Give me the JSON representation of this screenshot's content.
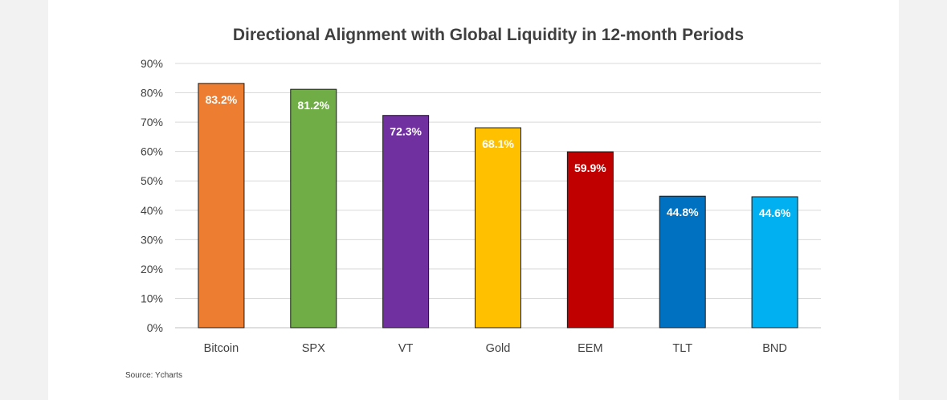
{
  "chart_data": {
    "type": "bar",
    "title": "Directional Alignment with Global Liquidity in 12-month Periods",
    "categories": [
      "Bitcoin",
      "SPX",
      "VT",
      "Gold",
      "EEM",
      "TLT",
      "BND"
    ],
    "values": [
      83.2,
      81.2,
      72.3,
      68.1,
      59.9,
      44.8,
      44.6
    ],
    "data_labels": [
      "83.2%",
      "81.2%",
      "72.3%",
      "68.1%",
      "59.9%",
      "44.8%",
      "44.6%"
    ],
    "bar_colors": [
      "#ed7d31",
      "#70ad47",
      "#7030a0",
      "#ffc000",
      "#c00000",
      "#0070c0",
      "#00b0f0"
    ],
    "yticks": [
      "0%",
      "10%",
      "20%",
      "30%",
      "40%",
      "50%",
      "60%",
      "70%",
      "80%",
      "90%"
    ],
    "ylim": [
      0,
      90
    ],
    "grid": true,
    "legend": "none",
    "source": "Source: Ycharts"
  }
}
